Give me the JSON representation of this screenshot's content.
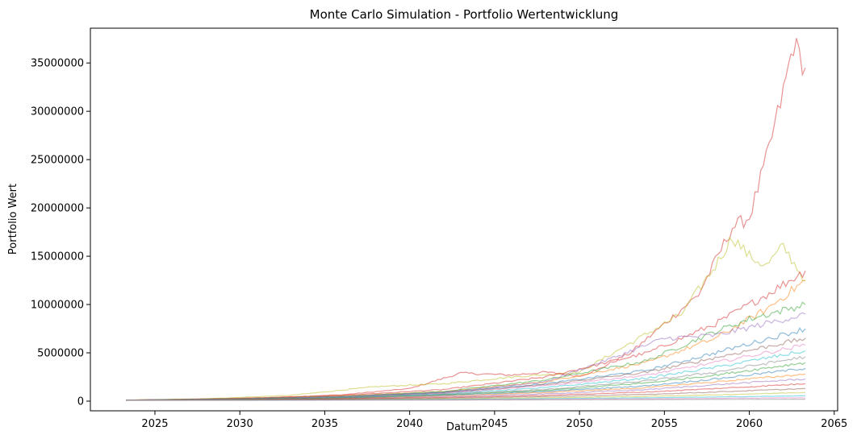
{
  "chart_data": {
    "type": "line",
    "title": "Monte Carlo Simulation - Portfolio Wertentwicklung",
    "xlabel": "Datum",
    "ylabel": "Portfolio Wert",
    "xlim": [
      2021.2,
      2065.2
    ],
    "ylim": [
      -1000000,
      38600000
    ],
    "x_ticks": [
      2025,
      2030,
      2035,
      2040,
      2045,
      2050,
      2055,
      2060,
      2065
    ],
    "y_ticks": [
      0,
      5000000,
      10000000,
      15000000,
      20000000,
      25000000,
      30000000,
      35000000
    ],
    "x_tick_labels": [
      "2025",
      "2030",
      "2035",
      "2040",
      "2045",
      "2050",
      "2055",
      "2060",
      "2065"
    ],
    "y_tick_labels": [
      "0",
      "5000000",
      "10000000",
      "15000000",
      "20000000",
      "25000000",
      "30000000",
      "35000000"
    ],
    "grid": false,
    "legend": "none",
    "series_opacity": 0.5,
    "series": [
      {
        "color": "#d62728",
        "points": [
          [
            2023.3,
            100000
          ],
          [
            2028,
            230000
          ],
          [
            2032,
            380000
          ],
          [
            2036,
            650000
          ],
          [
            2040,
            1300000
          ],
          [
            2043,
            2900000
          ],
          [
            2046,
            2700000
          ],
          [
            2048,
            3000000
          ],
          [
            2050,
            2600000
          ],
          [
            2051,
            3200000
          ],
          [
            2053,
            5000000
          ],
          [
            2055,
            8000000
          ],
          [
            2057,
            11000000
          ],
          [
            2059,
            18000000
          ],
          [
            2060,
            19000000
          ],
          [
            2061,
            25000000
          ],
          [
            2062,
            32000000
          ],
          [
            2062.6,
            37000000
          ],
          [
            2063.3,
            34500000
          ]
        ]
      },
      {
        "color": "#bcbd22",
        "points": [
          [
            2023.3,
            100000
          ],
          [
            2028,
            250000
          ],
          [
            2033,
            600000
          ],
          [
            2038,
            1500000
          ],
          [
            2042,
            1800000
          ],
          [
            2046,
            2500000
          ],
          [
            2050,
            3000000
          ],
          [
            2053,
            6000000
          ],
          [
            2056,
            9000000
          ],
          [
            2058,
            14000000
          ],
          [
            2059,
            17000000
          ],
          [
            2060,
            15000000
          ],
          [
            2061,
            14000000
          ],
          [
            2062,
            16000000
          ],
          [
            2063.3,
            12500000
          ]
        ]
      },
      {
        "color": "#d62728",
        "points": [
          [
            2023.3,
            100000
          ],
          [
            2030,
            280000
          ],
          [
            2036,
            600000
          ],
          [
            2042,
            1200000
          ],
          [
            2048,
            2500000
          ],
          [
            2054,
            5000000
          ],
          [
            2058,
            8000000
          ],
          [
            2061,
            11000000
          ],
          [
            2063.3,
            13500000
          ]
        ]
      },
      {
        "color": "#ff7f0e",
        "points": [
          [
            2023.3,
            100000
          ],
          [
            2030,
            260000
          ],
          [
            2036,
            550000
          ],
          [
            2042,
            1000000
          ],
          [
            2048,
            2000000
          ],
          [
            2054,
            4000000
          ],
          [
            2058,
            6500000
          ],
          [
            2061,
            9500000
          ],
          [
            2063.3,
            12500000
          ]
        ]
      },
      {
        "color": "#2ca02c",
        "points": [
          [
            2023.3,
            100000
          ],
          [
            2030,
            250000
          ],
          [
            2036,
            500000
          ],
          [
            2042,
            1000000
          ],
          [
            2048,
            2200000
          ],
          [
            2054,
            4200000
          ],
          [
            2058,
            7200000
          ],
          [
            2060,
            8500000
          ],
          [
            2063.3,
            10000000
          ]
        ]
      },
      {
        "color": "#9467bd",
        "points": [
          [
            2023.3,
            100000
          ],
          [
            2030,
            240000
          ],
          [
            2036,
            480000
          ],
          [
            2042,
            900000
          ],
          [
            2048,
            2000000
          ],
          [
            2052,
            4500000
          ],
          [
            2055,
            6500000
          ],
          [
            2058,
            6800000
          ],
          [
            2063.3,
            9000000
          ]
        ]
      },
      {
        "color": "#1f77b4",
        "points": [
          [
            2023.3,
            100000
          ],
          [
            2030,
            230000
          ],
          [
            2036,
            450000
          ],
          [
            2042,
            900000
          ],
          [
            2048,
            1800000
          ],
          [
            2054,
            3200000
          ],
          [
            2058,
            5000000
          ],
          [
            2063.3,
            7500000
          ]
        ]
      },
      {
        "color": "#8c564b",
        "points": [
          [
            2023.3,
            100000
          ],
          [
            2030,
            220000
          ],
          [
            2036,
            420000
          ],
          [
            2042,
            850000
          ],
          [
            2048,
            1700000
          ],
          [
            2054,
            3000000
          ],
          [
            2058,
            4500000
          ],
          [
            2063.3,
            6500000
          ]
        ]
      },
      {
        "color": "#e377c2",
        "points": [
          [
            2023.3,
            100000
          ],
          [
            2030,
            210000
          ],
          [
            2036,
            400000
          ],
          [
            2042,
            800000
          ],
          [
            2048,
            1600000
          ],
          [
            2054,
            2700000
          ],
          [
            2058,
            4000000
          ],
          [
            2063.3,
            5800000
          ]
        ]
      },
      {
        "color": "#17becf",
        "points": [
          [
            2023.3,
            100000
          ],
          [
            2030,
            200000
          ],
          [
            2036,
            380000
          ],
          [
            2042,
            750000
          ],
          [
            2048,
            1400000
          ],
          [
            2054,
            2400000
          ],
          [
            2058,
            3500000
          ],
          [
            2063.3,
            5200000
          ]
        ]
      },
      {
        "color": "#7f7f7f",
        "points": [
          [
            2023.3,
            100000
          ],
          [
            2030,
            190000
          ],
          [
            2036,
            350000
          ],
          [
            2042,
            700000
          ],
          [
            2048,
            1200000
          ],
          [
            2054,
            2100000
          ],
          [
            2058,
            3000000
          ],
          [
            2063.3,
            4600000
          ]
        ]
      },
      {
        "color": "#2ca02c",
        "points": [
          [
            2023.3,
            100000
          ],
          [
            2030,
            180000
          ],
          [
            2036,
            330000
          ],
          [
            2042,
            650000
          ],
          [
            2048,
            1100000
          ],
          [
            2054,
            1900000
          ],
          [
            2058,
            2700000
          ],
          [
            2063.3,
            4000000
          ]
        ]
      },
      {
        "color": "#1f77b4",
        "points": [
          [
            2023.3,
            100000
          ],
          [
            2030,
            170000
          ],
          [
            2036,
            300000
          ],
          [
            2042,
            600000
          ],
          [
            2048,
            1000000
          ],
          [
            2054,
            1600000
          ],
          [
            2058,
            2300000
          ],
          [
            2063.3,
            3400000
          ]
        ]
      },
      {
        "color": "#ff7f0e",
        "points": [
          [
            2023.3,
            100000
          ],
          [
            2030,
            160000
          ],
          [
            2036,
            280000
          ],
          [
            2042,
            520000
          ],
          [
            2048,
            900000
          ],
          [
            2054,
            1400000
          ],
          [
            2058,
            2000000
          ],
          [
            2063.3,
            2800000
          ]
        ]
      },
      {
        "color": "#9467bd",
        "points": [
          [
            2023.3,
            100000
          ],
          [
            2030,
            150000
          ],
          [
            2036,
            250000
          ],
          [
            2042,
            450000
          ],
          [
            2048,
            750000
          ],
          [
            2054,
            1200000
          ],
          [
            2058,
            1700000
          ],
          [
            2063.3,
            2300000
          ]
        ]
      },
      {
        "color": "#d62728",
        "points": [
          [
            2023.3,
            100000
          ],
          [
            2030,
            140000
          ],
          [
            2036,
            220000
          ],
          [
            2042,
            380000
          ],
          [
            2048,
            600000
          ],
          [
            2054,
            950000
          ],
          [
            2058,
            1300000
          ],
          [
            2063.3,
            1800000
          ]
        ]
      },
      {
        "color": "#8c564b",
        "points": [
          [
            2023.3,
            100000
          ],
          [
            2030,
            130000
          ],
          [
            2036,
            190000
          ],
          [
            2042,
            300000
          ],
          [
            2048,
            480000
          ],
          [
            2054,
            700000
          ],
          [
            2058,
            950000
          ],
          [
            2063.3,
            1300000
          ]
        ]
      },
      {
        "color": "#bcbd22",
        "points": [
          [
            2023.3,
            100000
          ],
          [
            2030,
            120000
          ],
          [
            2036,
            160000
          ],
          [
            2042,
            240000
          ],
          [
            2048,
            350000
          ],
          [
            2054,
            500000
          ],
          [
            2058,
            650000
          ],
          [
            2063.3,
            900000
          ]
        ]
      },
      {
        "color": "#17becf",
        "points": [
          [
            2023.3,
            100000
          ],
          [
            2030,
            110000
          ],
          [
            2036,
            140000
          ],
          [
            2042,
            190000
          ],
          [
            2048,
            260000
          ],
          [
            2054,
            350000
          ],
          [
            2058,
            430000
          ],
          [
            2063.3,
            550000
          ]
        ]
      },
      {
        "color": "#e377c2",
        "points": [
          [
            2023.3,
            100000
          ],
          [
            2030,
            100000
          ],
          [
            2036,
            120000
          ],
          [
            2042,
            150000
          ],
          [
            2048,
            190000
          ],
          [
            2054,
            240000
          ],
          [
            2058,
            290000
          ],
          [
            2063.3,
            350000
          ]
        ]
      },
      {
        "color": "#7f7f7f",
        "points": [
          [
            2023.3,
            100000
          ],
          [
            2030,
            95000
          ],
          [
            2036,
            105000
          ],
          [
            2042,
            120000
          ],
          [
            2048,
            140000
          ],
          [
            2054,
            160000
          ],
          [
            2058,
            180000
          ],
          [
            2063.3,
            200000
          ]
        ]
      }
    ]
  }
}
